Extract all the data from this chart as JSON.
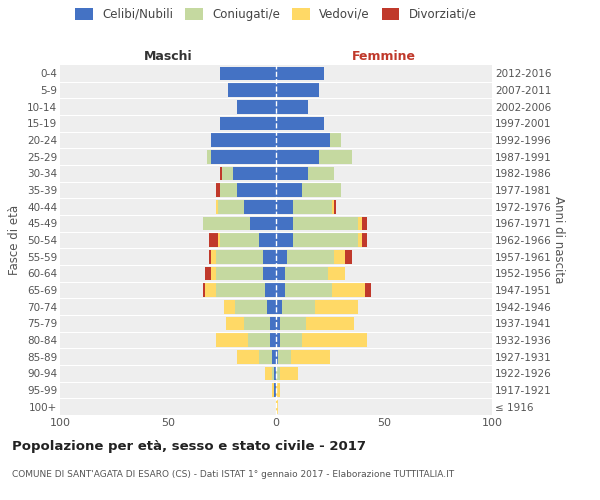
{
  "age_groups": [
    "100+",
    "95-99",
    "90-94",
    "85-89",
    "80-84",
    "75-79",
    "70-74",
    "65-69",
    "60-64",
    "55-59",
    "50-54",
    "45-49",
    "40-44",
    "35-39",
    "30-34",
    "25-29",
    "20-24",
    "15-19",
    "10-14",
    "5-9",
    "0-4"
  ],
  "anni_nascita": [
    "≤ 1916",
    "1917-1921",
    "1922-1926",
    "1927-1931",
    "1932-1936",
    "1937-1941",
    "1942-1946",
    "1947-1951",
    "1952-1956",
    "1957-1961",
    "1962-1966",
    "1967-1971",
    "1972-1976",
    "1977-1981",
    "1982-1986",
    "1987-1991",
    "1992-1996",
    "1997-2001",
    "2002-2006",
    "2007-2011",
    "2012-2016"
  ],
  "maschi": {
    "celibe": [
      0,
      1,
      1,
      2,
      3,
      3,
      4,
      5,
      6,
      6,
      8,
      12,
      15,
      18,
      20,
      30,
      30,
      26,
      18,
      22,
      26
    ],
    "coniugato": [
      0,
      0,
      1,
      6,
      10,
      12,
      15,
      23,
      22,
      22,
      18,
      22,
      12,
      8,
      5,
      2,
      0,
      0,
      0,
      0,
      0
    ],
    "vedovo": [
      0,
      1,
      3,
      10,
      15,
      8,
      5,
      5,
      2,
      2,
      1,
      0,
      1,
      0,
      0,
      0,
      0,
      0,
      0,
      0,
      0
    ],
    "divorziato": [
      0,
      0,
      0,
      0,
      0,
      0,
      0,
      1,
      3,
      1,
      4,
      0,
      0,
      2,
      1,
      0,
      0,
      0,
      0,
      0,
      0
    ]
  },
  "femmine": {
    "nubile": [
      0,
      0,
      0,
      1,
      2,
      2,
      3,
      4,
      4,
      5,
      8,
      8,
      8,
      12,
      15,
      20,
      25,
      22,
      15,
      20,
      22
    ],
    "coniugata": [
      0,
      0,
      2,
      6,
      10,
      12,
      15,
      22,
      20,
      22,
      30,
      30,
      18,
      18,
      12,
      15,
      5,
      0,
      0,
      0,
      0
    ],
    "vedova": [
      1,
      2,
      8,
      18,
      30,
      22,
      20,
      15,
      8,
      5,
      2,
      2,
      1,
      0,
      0,
      0,
      0,
      0,
      0,
      0,
      0
    ],
    "divorziata": [
      0,
      0,
      0,
      0,
      0,
      0,
      0,
      3,
      0,
      3,
      2,
      2,
      1,
      0,
      0,
      0,
      0,
      0,
      0,
      0,
      0
    ]
  },
  "colors": {
    "celibe": "#4472C4",
    "coniugato": "#C5D9A0",
    "vedovo": "#FFD966",
    "divorziato": "#C0392B"
  },
  "title": "Popolazione per età, sesso e stato civile - 2017",
  "subtitle": "COMUNE DI SANT'AGATA DI ESARO (CS) - Dati ISTAT 1° gennaio 2017 - Elaborazione TUTTITALIA.IT",
  "maschi_label": "Maschi",
  "femmine_label": "Femmine",
  "ylabel_left": "Fasce di età",
  "ylabel_right": "Anni di nascita",
  "legend_labels": [
    "Celibi/Nubili",
    "Coniugati/e",
    "Vedovi/e",
    "Divorziati/e"
  ],
  "xlim": 100,
  "fig_width": 6.0,
  "fig_height": 5.0,
  "dpi": 100
}
